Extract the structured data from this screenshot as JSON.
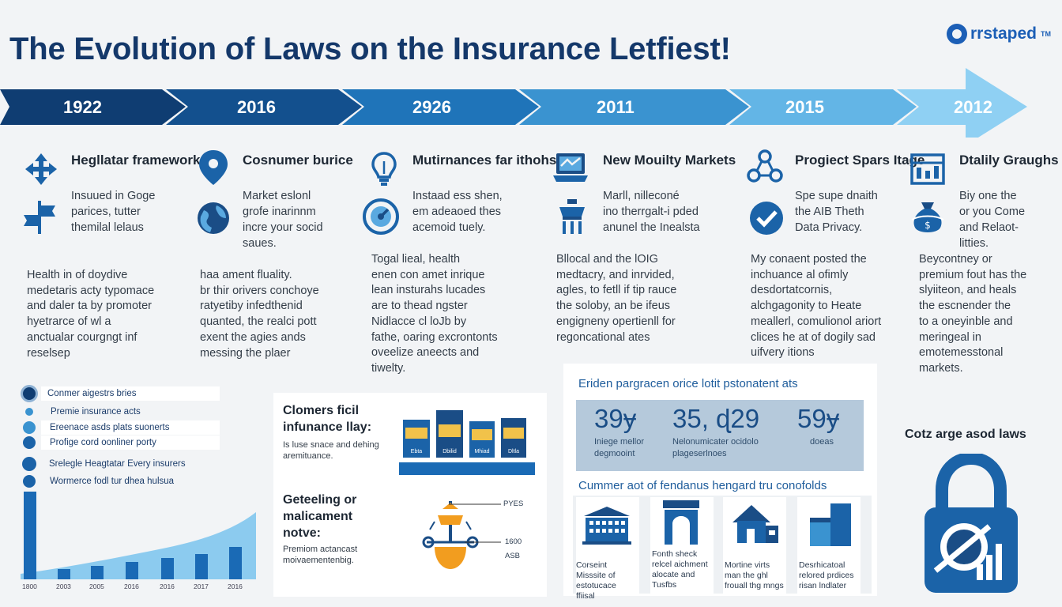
{
  "header": {
    "title": "The Evolution of Laws on the Insurance Letfiest!",
    "brand_name": "rrstaped",
    "brand_mark": "TM"
  },
  "timeline": {
    "years": [
      "1922",
      "2016",
      "2926",
      "2011",
      "2015",
      "2012"
    ],
    "colors": [
      "#0f3d72",
      "#13508e",
      "#1f74b9",
      "#3a93d0",
      "#63b5e6",
      "#8fd0f3"
    ]
  },
  "columns": [
    {
      "heading": "Hegllatar\nframeworks",
      "text": "Insuued in Goge\nparices, tutter\nthemilal lelaus",
      "para": "Health in of doydive\nmedetaris acty typomace\nand daler ta by promoter\nhyetrarce of wl a\nanctualar courgngt inf\nreselsep",
      "icon1": "move-arrows-icon",
      "icon2": "signpost-icon"
    },
    {
      "heading": "Cosnumer\nburice",
      "text": "Market eslonl\ngrofe inarinnm\nincre your socid\nsaues.",
      "para": "haa ament fluality.\nbr thir orivers conchoye\nratyetiby infedthenid\nquanted, the realci pott\nexent the agies ands\nmessing the plaer",
      "icon1": "map-pin-icon",
      "icon2": "globe-icon"
    },
    {
      "heading": "Mutirnances\nfar ithohs",
      "text": "Instaad ess shen,\nem adeaoed thes\nacemoid tuely.",
      "para": "Togal lieal, health\nenen con amet inrique\nlean insturahs lucades\nare to thead ngster\nNidlacce cl loJb by\nfathe, oaring excrontonts\noveelize aneects and\ntiwelty.",
      "icon1": "lightbulb-icon",
      "icon2": "gauge-icon"
    },
    {
      "heading": "New Mouilty\nMarkets",
      "text": "Marll, nilleconé\nino therrgalt-i pded\nanunel the Inealsta",
      "para": "Bllocal and the lOIG\nmedtacry, and inrvided,\nagles, to fetll if tip rauce\nthe soloby, an be ifeus\nengigneny opertienll for\nregoncational ates",
      "icon1": "laptop-icon",
      "icon2": "lantern-icon"
    },
    {
      "heading": "Progiect\nSpars Itage",
      "text": "Spe supe dnaith\nthe AIB Theth\nData Privacy.",
      "para": "My conaent posted the\ninchuance al ofimly\ndesdortatcornis,\nalchgagonity to Heate\nmeallerl, comulionol ariort\nclices he at of dogily sad\nuifvery itions",
      "icon1": "network-icon",
      "icon2": "check-circle-icon"
    },
    {
      "heading": "Dtalily\nGraughs",
      "text": "Biy one the\nor you Come\nand Relaot-\nlitties.",
      "para": "Beycontney or\npremium fout has the\nslyiiteon, and heals\nthe escnender the\nto a oneyinble and\nmeringeal in\nemotemesstonal\nmarkets.",
      "icon1": "panel-chart-icon",
      "icon2": "money-bag-icon"
    }
  ],
  "legend": {
    "items": [
      "Conmer aigestrs bries",
      "Premie insurance acts",
      "Ereenace asds plats suonerts",
      "Profige cord oonliner porty",
      "Srelegle Heagtatar Every insurers",
      "Wormerce fodl tur dhea hulsua"
    ],
    "accent": "#1b63a8"
  },
  "bar_panel": {
    "x_labels": [
      "1800",
      "2003",
      "2005",
      "2016",
      "2016",
      "2017",
      "2016"
    ],
    "values": [
      1.0,
      0.12,
      0.15,
      0.2,
      0.24,
      0.29,
      0.37
    ],
    "ylim": [
      0,
      1.0
    ],
    "bar_color": "#1a6ab5",
    "area_color": "#8ccbef"
  },
  "middle_panel": {
    "block1_title": "Clomers ficil\ninfunance llay:",
    "block1_text": "Is luse snace and dehing\naremituance.",
    "card_labels": [
      "Ebta",
      "Dbilid",
      "Mhiad",
      "Dltla"
    ],
    "block2_title": "Geteeling or\nmalicament\nnotve:",
    "block2_text": "Premiom actancast\nmoivaementenbig.",
    "scale_top": "PYES",
    "scale_mid": "1600",
    "scale_bot": "ASB"
  },
  "stats_panel": {
    "title": "Eriden pargracen orice lotit pstonatent ats",
    "stats": [
      {
        "value": "39ɏ",
        "label": "Iniege mellor\ndegmooint"
      },
      {
        "value": "35, ɖ29",
        "label": "Nelonumicater ocidolo\nplageserlnoes"
      },
      {
        "value": "59ɏ",
        "label": "doeas"
      }
    ],
    "subtitle": "Cummer aot of fendanus hengard tru conofolds",
    "cards": [
      {
        "label": "Corseint\nMisssite of\nestotucace\nffiisal",
        "icon": "library-icon"
      },
      {
        "label": "Fonth sheck\nrelcel aichment\nalocate and\nTusfbs",
        "icon": "arch-gate-icon"
      },
      {
        "label": "Mortine virts\nman the ghl\nfrouall thg mngs",
        "icon": "house-icon"
      },
      {
        "label": "Desrhicatoal\nrelored prdices\nrisan lndlater",
        "icon": "building-icon"
      }
    ]
  },
  "right_panel": {
    "title": "Cotz arge asod laws",
    "icon": "padlock-icon"
  }
}
